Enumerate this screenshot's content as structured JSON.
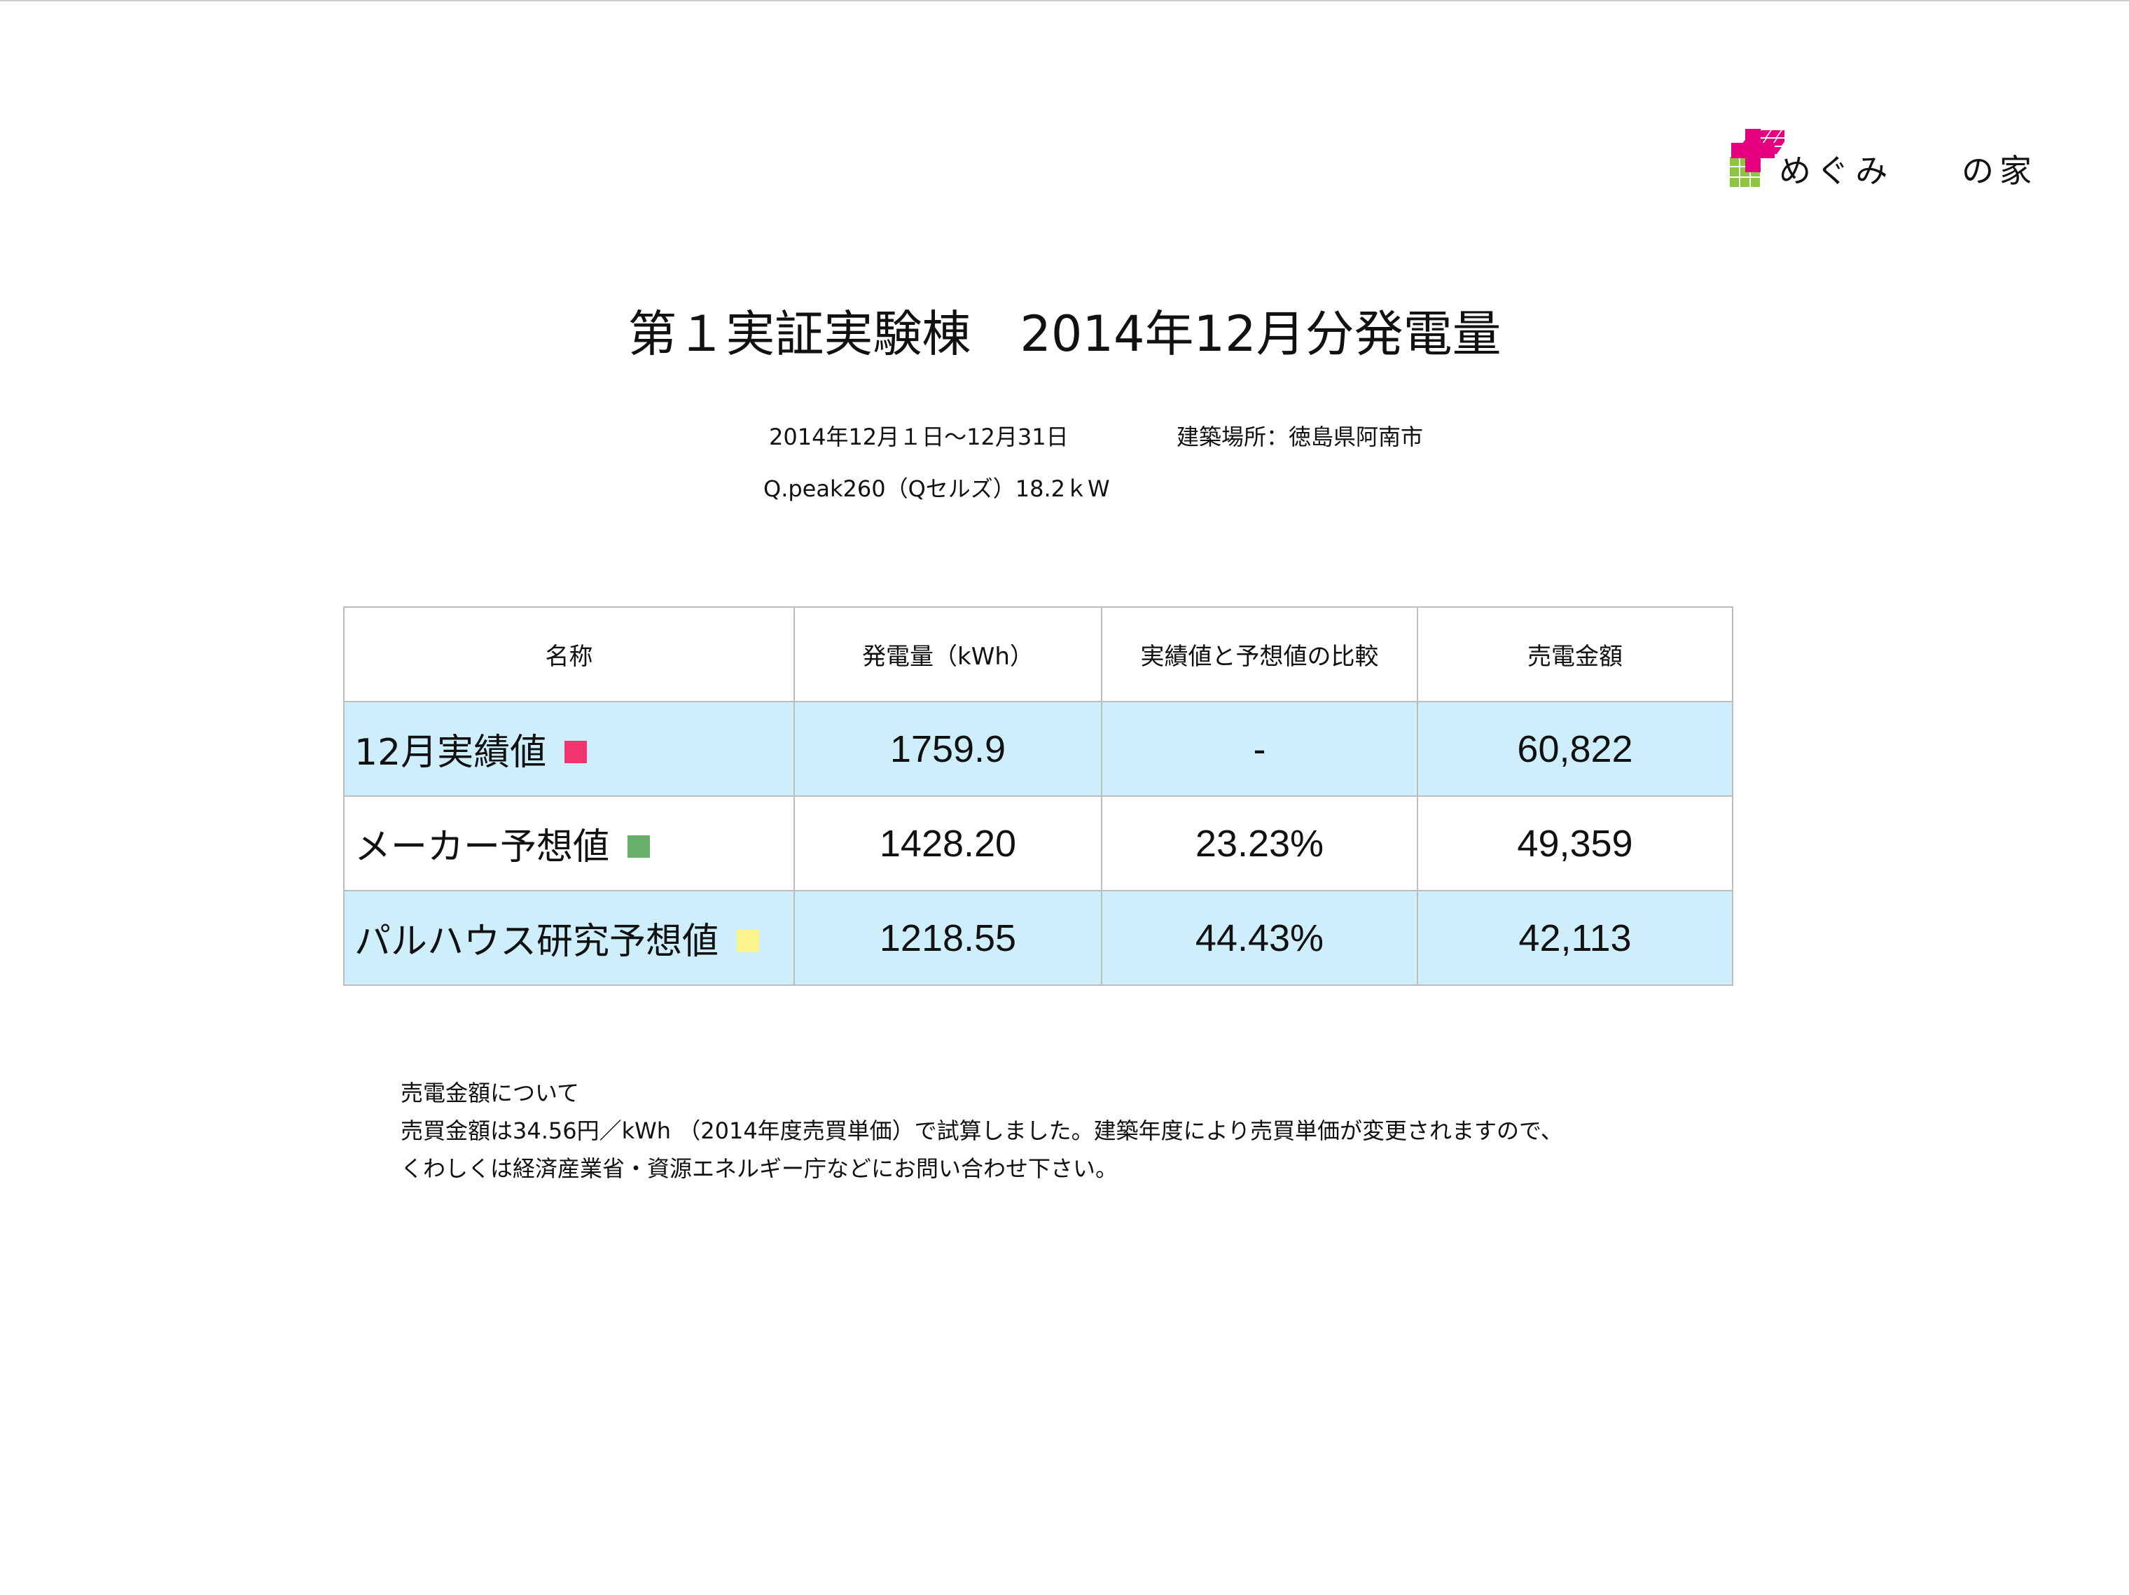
{
  "logo": {
    "text_left": "めぐみ",
    "plus_text": "プラス",
    "text_right": "の家",
    "colors": {
      "roof": "#e4007f",
      "wall": "#8cc63f"
    }
  },
  "title": {
    "part1": "第１実証実験棟",
    "part2": "2014年12月分発電量"
  },
  "meta": {
    "period": "2014年12月１日〜12月31日",
    "location": "建築場所：徳島県阿南市",
    "spec": "Q.peak260（Qセルズ）18.2ｋW"
  },
  "table": {
    "headers": [
      "名称",
      "発電量（kWh）",
      "実績値と予想値の比較",
      "売電金額"
    ],
    "rows": [
      {
        "name": "12月実績値",
        "swatch": "#f0346e",
        "generation": "1759.9",
        "comparison": "-",
        "amount": "60,822"
      },
      {
        "name": "メーカー予想値",
        "swatch": "#66b06a",
        "generation": "1428.20",
        "comparison": "23.23%",
        "amount": "49,359"
      },
      {
        "name": "パルハウス研究予想値",
        "swatch": "#fbf48c",
        "generation": "1218.55",
        "comparison": "44.43%",
        "amount": "42,113"
      }
    ]
  },
  "notes": {
    "heading": "売電金額について",
    "line1": "売買金額は34.56円／kWh （2014年度売買単価）で試算しました。建築年度により売買単価が変更されますので、",
    "line2": "くわしくは経済産業省・資源エネルギー庁などにお問い合わせ下さい。"
  }
}
